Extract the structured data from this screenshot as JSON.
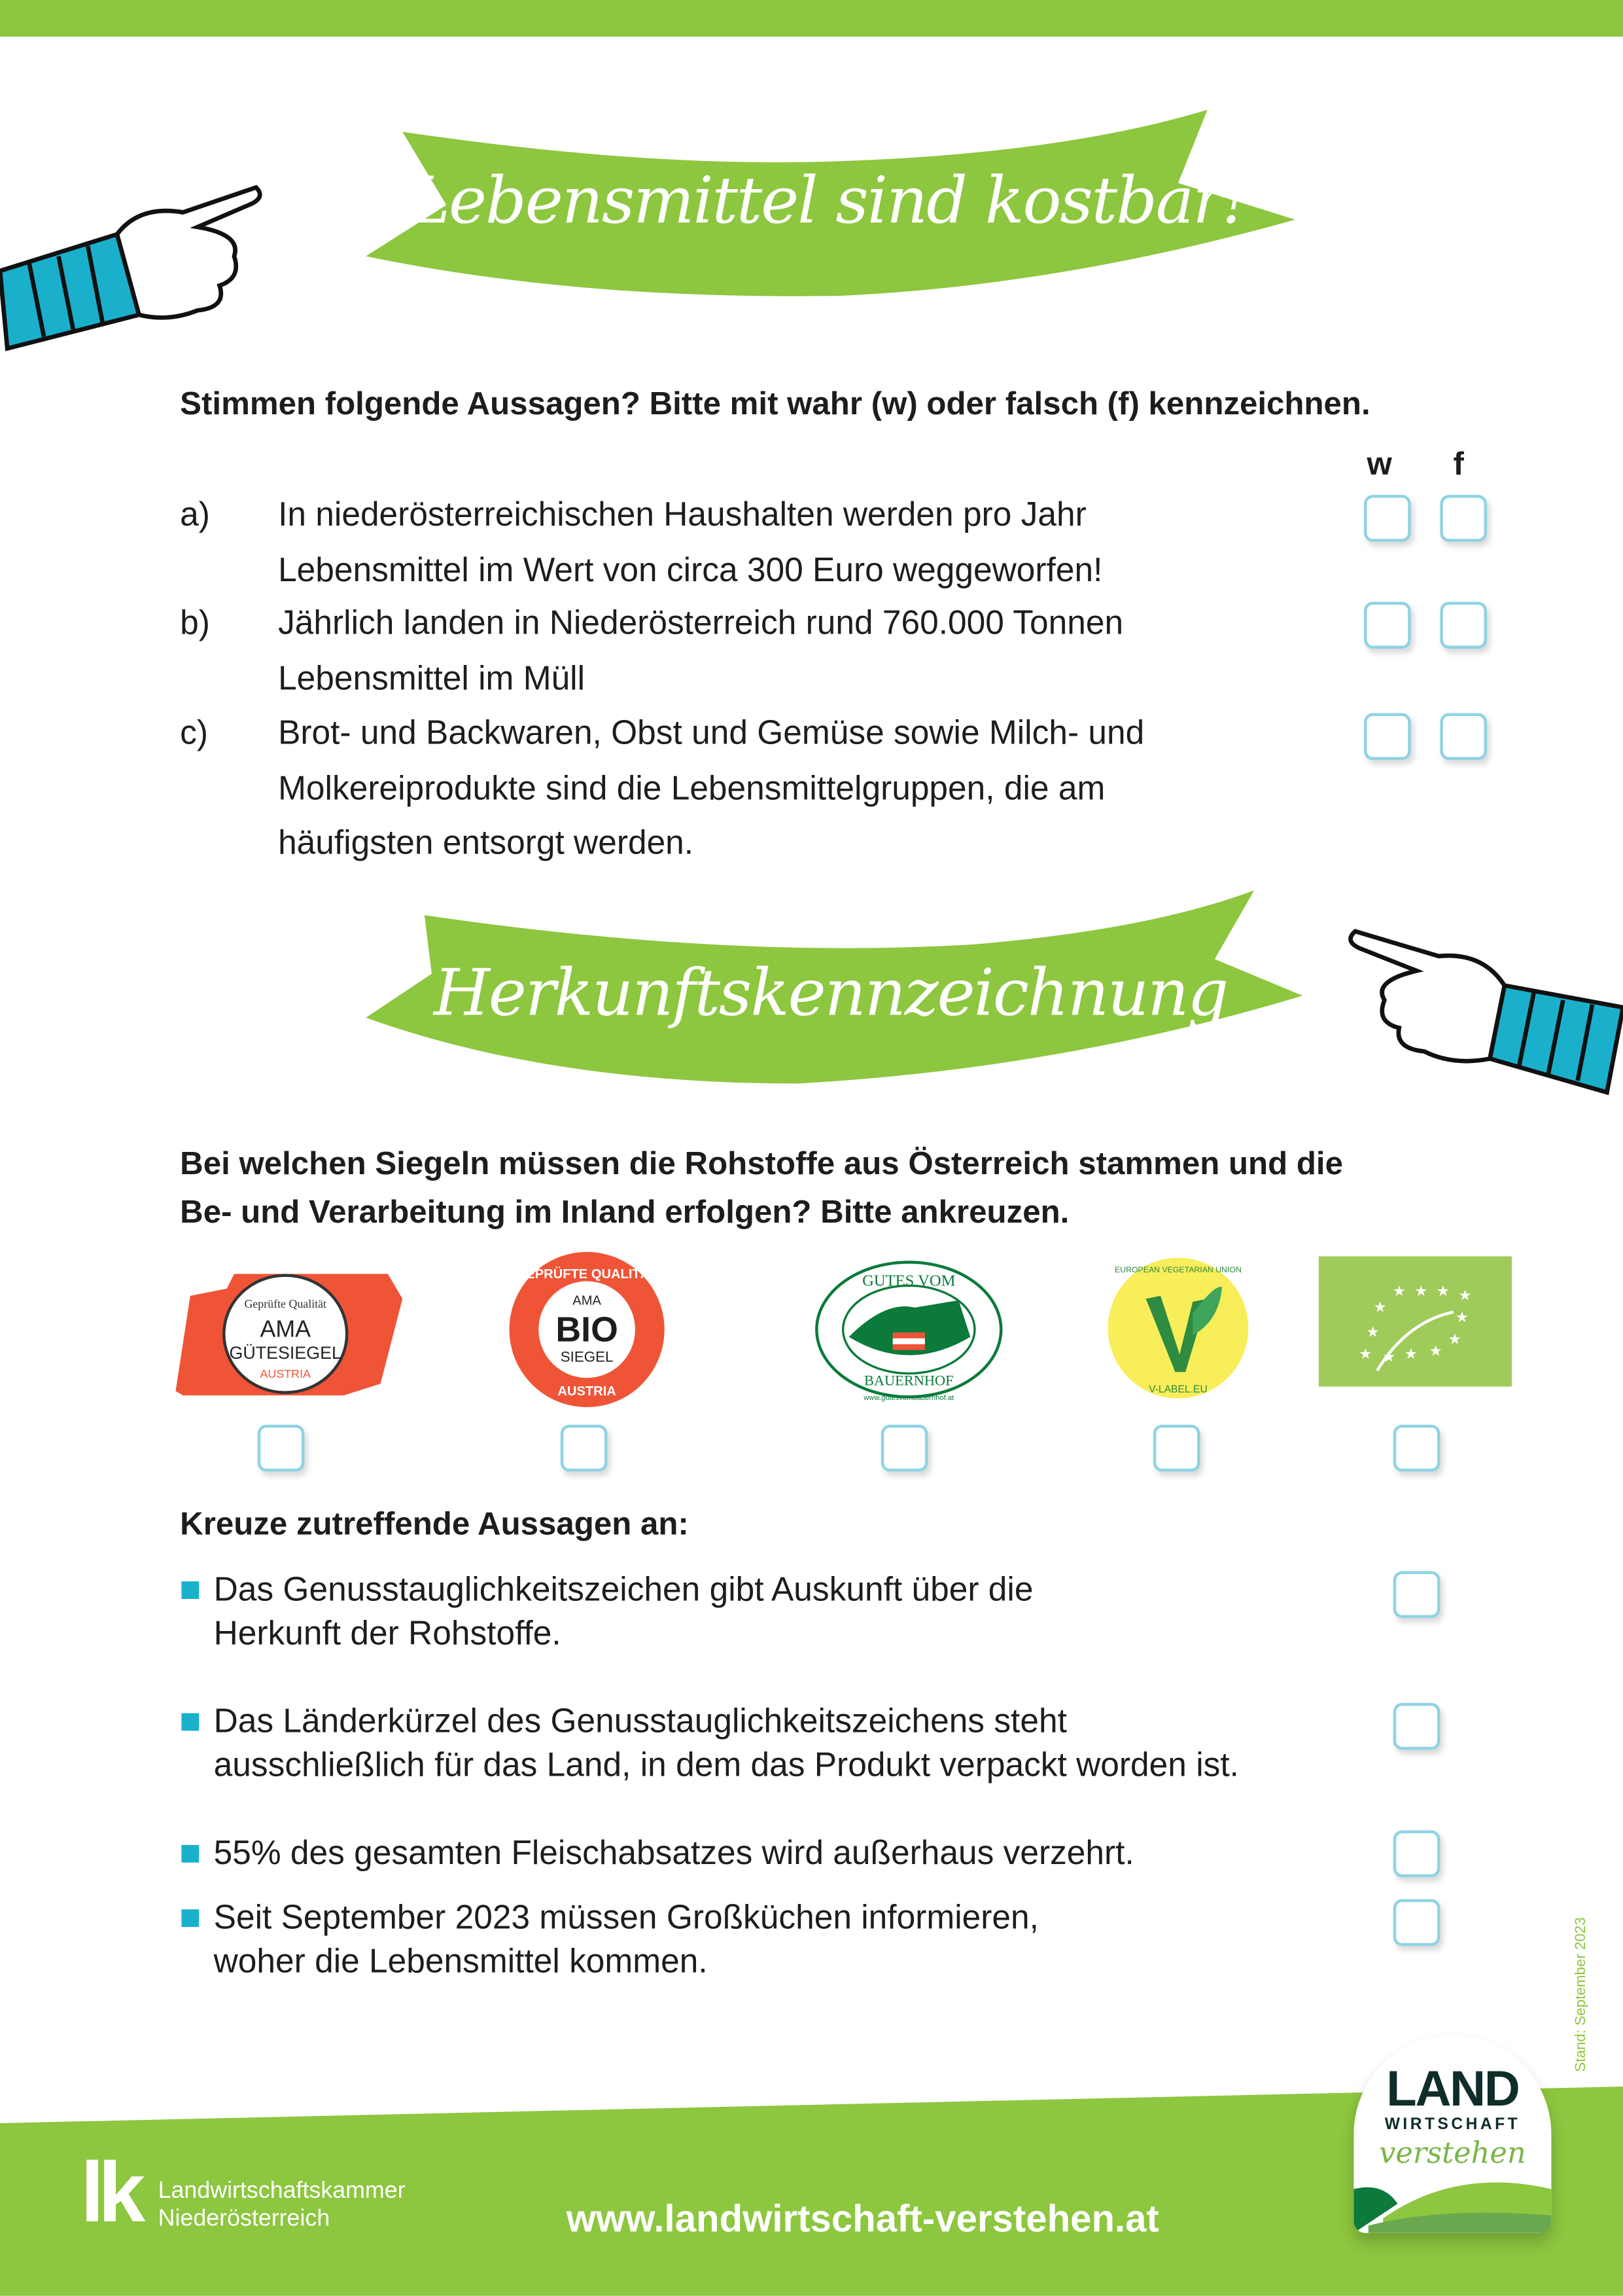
{
  "section1": {
    "banner_title": "Lebensmittel sind kostbar!",
    "instruction": "Stimmen folgende Aussagen? Bitte mit wahr (w) oder falsch (f) kennzeichnen.",
    "col_w": "w",
    "col_f": "f",
    "items": [
      {
        "letter": "a)",
        "line1": "In niederösterreichischen Haushalten werden pro Jahr",
        "line2": "Lebensmittel im Wert von circa 300 Euro weggeworfen!"
      },
      {
        "letter": "b)",
        "line1": "Jährlich landen in Niederösterreich rund 760.000 Tonnen",
        "line2": "Lebensmittel im Müll"
      },
      {
        "letter": "c)",
        "line1": "Brot- und Backwaren, Obst und Gemüse sowie Milch- und",
        "line2": "Molkereiprodukte sind die Lebensmittelgruppen, die am",
        "line3": "häufigsten entsorgt werden."
      }
    ]
  },
  "section2": {
    "banner_title": "Herkunftskennzeichnung",
    "question_line1": "Bei welchen Siegeln müssen die Rohstoffe aus Österreich stammen und die",
    "question_line2": "Be- und Verarbeitung im Inland erfolgen? Bitte ankreuzen.",
    "seals": [
      {
        "name": "AMA Gütesiegel",
        "top": "Geprüfte Qualität",
        "main": "AMA",
        "sub": "GÜTESIEGEL",
        "bottom": "AUSTRIA"
      },
      {
        "name": "AMA Bio Siegel",
        "top": "GEPRÜFTE QUALITÄT",
        "main": "BIO",
        "pre": "AMA",
        "sub": "SIEGEL",
        "bottom": "AUSTRIA"
      },
      {
        "name": "Gutes vom Bauernhof",
        "top": "GUTES VOM",
        "bottom": "BAUERNHOF",
        "url": "www.gutesvombauernhof.at"
      },
      {
        "name": "V-Label",
        "top": "EUROPEAN VEGETARIAN UNION",
        "bottom": "V-LABEL.EU"
      },
      {
        "name": "EU Bio Logo"
      }
    ],
    "statements_title": "Kreuze zutreffende Aussagen an:",
    "statements": [
      {
        "line1": "Das Genusstauglichkeitszeichen gibt Auskunft über die",
        "line2": "Herkunft der Rohstoffe."
      },
      {
        "line1": "Das Länderkürzel des Genusstauglichkeitszeichens steht",
        "line2": "ausschließlich für das Land, in dem das Produkt verpackt worden ist."
      },
      {
        "line1": "55% des gesamten Fleischabsatzes wird außerhaus verzehrt."
      },
      {
        "line1": "Seit September 2023 müssen Großküchen informieren,",
        "line2": "woher die Lebensmittel kommen."
      }
    ]
  },
  "stand": "Stand: September 2023",
  "footer": {
    "lk_mark": "lk",
    "lk_line1": "Landwirtschaftskammer",
    "lk_line2": "Niederösterreich",
    "url": "www.landwirtschaft-verstehen.at",
    "badge_land": "LAND",
    "badge_wirtschaft": "WIRTSCHAFT",
    "badge_verstehen": "verstehen"
  },
  "colors": {
    "green": "#8dc63f",
    "cyan": "#1ab0cc",
    "checkbox": "#8fd3e4"
  }
}
